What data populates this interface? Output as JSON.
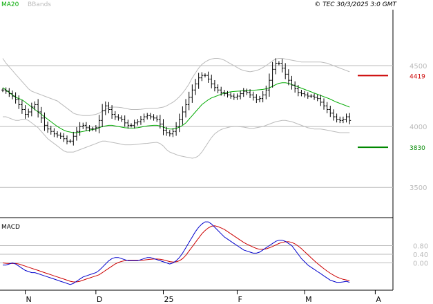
{
  "header": {
    "indicators": [
      "MA20",
      "BBands"
    ],
    "copyright": "© TEC 30/3/2025 3:0 GMT"
  },
  "colors": {
    "price_bars": "#000000",
    "ma20": "#00aa00",
    "bbands": "#bbbbbb",
    "resistance": "#cc0000",
    "support": "#008800",
    "macd_line": "#0000cc",
    "signal_line": "#cc0000",
    "grid": "#bbbbbb"
  },
  "chart_data": [
    {
      "type": "ohlc",
      "panel": "price",
      "indicators": [
        "MA20",
        "BBands"
      ],
      "y_ticks": [
        "4500",
        "4000",
        "3500"
      ],
      "y_tick_values": [
        4500,
        4000,
        3500
      ],
      "ylim": [
        3280,
        4960
      ],
      "x_ticks": [
        "N",
        "D",
        "25",
        "F",
        "M",
        "A"
      ],
      "x_tick_index": [
        7,
        29,
        50,
        73,
        94,
        116
      ],
      "n_bars": 109,
      "close": [
        4300,
        4290,
        4270,
        4250,
        4220,
        4180,
        4140,
        4100,
        4120,
        4160,
        4180,
        4120,
        4070,
        4010,
        3980,
        3960,
        3940,
        3930,
        3920,
        3900,
        3880,
        3880,
        3920,
        3960,
        4000,
        4010,
        3990,
        3980,
        3980,
        3990,
        4050,
        4130,
        4170,
        4140,
        4100,
        4080,
        4070,
        4060,
        4030,
        4010,
        4010,
        4030,
        4040,
        4060,
        4080,
        4090,
        4080,
        4070,
        4060,
        4020,
        3970,
        3950,
        3940,
        3960,
        4000,
        4060,
        4120,
        4180,
        4240,
        4300,
        4350,
        4400,
        4420,
        4420,
        4390,
        4350,
        4320,
        4300,
        4280,
        4270,
        4260,
        4250,
        4240,
        4250,
        4270,
        4290,
        4280,
        4260,
        4240,
        4220,
        4230,
        4260,
        4300,
        4380,
        4470,
        4520,
        4520,
        4480,
        4430,
        4380,
        4340,
        4310,
        4280,
        4270,
        4260,
        4250,
        4250,
        4240,
        4230,
        4200,
        4170,
        4140,
        4110,
        4080,
        4060,
        4050,
        4060,
        4080,
        4050
      ],
      "ohlc_range_note": "high/low drawn as range around close",
      "ma20": [
        4320,
        4300,
        4280,
        4260,
        4240,
        4230,
        4220,
        4200,
        4180,
        4160,
        4140,
        4120,
        4100,
        4080,
        4060,
        4040,
        4020,
        4000,
        3985,
        3970,
        3960,
        3955,
        3950,
        3950,
        3955,
        3960,
        3965,
        3970,
        3975,
        3980,
        3990,
        4000,
        4005,
        4010,
        4010,
        4005,
        4000,
        3995,
        3990,
        3988,
        3987,
        3988,
        3990,
        3995,
        4000,
        4005,
        4008,
        4010,
        4010,
        4005,
        3995,
        3985,
        3980,
        3980,
        3985,
        3995,
        4010,
        4030,
        4060,
        4090,
        4120,
        4150,
        4180,
        4200,
        4220,
        4235,
        4245,
        4255,
        4265,
        4275,
        4280,
        4285,
        4288,
        4290,
        4292,
        4295,
        4296,
        4297,
        4298,
        4300,
        4302,
        4305,
        4310,
        4318,
        4330,
        4345,
        4355,
        4360,
        4360,
        4355,
        4345,
        4335,
        4325,
        4315,
        4305,
        4295,
        4285,
        4275,
        4265,
        4255,
        4245,
        4235,
        4225,
        4212,
        4200,
        4190,
        4180,
        4170,
        4160
      ],
      "bb_upper": [
        4560,
        4520,
        4490,
        4460,
        4430,
        4400,
        4370,
        4340,
        4310,
        4290,
        4280,
        4270,
        4260,
        4250,
        4240,
        4230,
        4220,
        4210,
        4190,
        4170,
        4150,
        4130,
        4110,
        4100,
        4095,
        4090,
        4090,
        4090,
        4095,
        4100,
        4110,
        4125,
        4140,
        4155,
        4160,
        4160,
        4158,
        4155,
        4150,
        4145,
        4140,
        4140,
        4140,
        4142,
        4145,
        4148,
        4150,
        4150,
        4150,
        4155,
        4160,
        4170,
        4185,
        4200,
        4220,
        4245,
        4275,
        4310,
        4350,
        4400,
        4440,
        4480,
        4510,
        4530,
        4545,
        4555,
        4560,
        4560,
        4555,
        4545,
        4530,
        4515,
        4500,
        4485,
        4470,
        4460,
        4455,
        4450,
        4455,
        4460,
        4470,
        4485,
        4500,
        4520,
        4540,
        4555,
        4560,
        4560,
        4555,
        4550,
        4545,
        4540,
        4535,
        4530,
        4530,
        4530,
        4530,
        4530,
        4530,
        4530,
        4525,
        4520,
        4510,
        4500,
        4490,
        4480,
        4470,
        4460,
        4450
      ],
      "bb_lower": [
        4080,
        4080,
        4070,
        4060,
        4050,
        4050,
        4060,
        4060,
        4050,
        4030,
        4010,
        3990,
        3960,
        3930,
        3900,
        3880,
        3860,
        3840,
        3820,
        3800,
        3790,
        3790,
        3790,
        3800,
        3810,
        3820,
        3830,
        3840,
        3850,
        3860,
        3870,
        3880,
        3880,
        3875,
        3870,
        3865,
        3860,
        3855,
        3850,
        3850,
        3850,
        3852,
        3855,
        3858,
        3860,
        3862,
        3865,
        3868,
        3870,
        3860,
        3840,
        3810,
        3790,
        3780,
        3770,
        3760,
        3755,
        3750,
        3745,
        3740,
        3745,
        3760,
        3790,
        3830,
        3870,
        3910,
        3940,
        3960,
        3975,
        3985,
        3992,
        3998,
        4000,
        4000,
        3998,
        3995,
        3990,
        3985,
        3985,
        3990,
        3995,
        4000,
        4010,
        4020,
        4030,
        4040,
        4045,
        4050,
        4050,
        4045,
        4040,
        4030,
        4020,
        4010,
        4000,
        3990,
        3985,
        3980,
        3980,
        3980,
        3975,
        3970,
        3965,
        3960,
        3955,
        3950,
        3950,
        3950,
        3950
      ]
    },
    {
      "type": "hline",
      "panel": "price",
      "lines": [
        {
          "value": 4419,
          "label": "4419",
          "role": "resistance"
        },
        {
          "value": 3830,
          "label": "3830",
          "role": "support"
        }
      ]
    },
    {
      "type": "line",
      "panel": "macd",
      "title": "MACD",
      "y_ticks": [
        "0.80",
        "0.40",
        "0.00"
      ],
      "y_tick_values": [
        0.8,
        0.4,
        0.0
      ],
      "ylim": [
        -1.2,
        2.0
      ],
      "n_points": 109,
      "series": [
        {
          "name": "MACD",
          "values": [
            -0.1,
            -0.1,
            -0.05,
            0.0,
            -0.05,
            -0.15,
            -0.25,
            -0.35,
            -0.4,
            -0.45,
            -0.45,
            -0.5,
            -0.55,
            -0.6,
            -0.65,
            -0.7,
            -0.75,
            -0.8,
            -0.85,
            -0.9,
            -0.95,
            -1.0,
            -0.95,
            -0.85,
            -0.75,
            -0.65,
            -0.6,
            -0.55,
            -0.5,
            -0.45,
            -0.35,
            -0.2,
            -0.05,
            0.1,
            0.2,
            0.25,
            0.25,
            0.2,
            0.15,
            0.1,
            0.1,
            0.1,
            0.1,
            0.15,
            0.2,
            0.25,
            0.25,
            0.2,
            0.15,
            0.1,
            0.05,
            0.0,
            -0.05,
            0.0,
            0.1,
            0.25,
            0.45,
            0.7,
            0.95,
            1.2,
            1.45,
            1.65,
            1.8,
            1.9,
            1.9,
            1.8,
            1.65,
            1.5,
            1.35,
            1.2,
            1.1,
            1.0,
            0.9,
            0.8,
            0.7,
            0.6,
            0.55,
            0.5,
            0.45,
            0.45,
            0.5,
            0.6,
            0.7,
            0.8,
            0.9,
            1.0,
            1.05,
            1.05,
            1.0,
            0.9,
            0.8,
            0.6,
            0.4,
            0.2,
            0.05,
            -0.1,
            -0.2,
            -0.3,
            -0.4,
            -0.5,
            -0.6,
            -0.7,
            -0.8,
            -0.85,
            -0.9,
            -0.9,
            -0.88,
            -0.85,
            -0.9
          ]
        },
        {
          "name": "Signal",
          "values": [
            0.0,
            -0.02,
            -0.03,
            -0.03,
            -0.03,
            -0.05,
            -0.1,
            -0.15,
            -0.2,
            -0.25,
            -0.3,
            -0.35,
            -0.4,
            -0.45,
            -0.5,
            -0.55,
            -0.6,
            -0.65,
            -0.7,
            -0.75,
            -0.8,
            -0.85,
            -0.88,
            -0.88,
            -0.85,
            -0.8,
            -0.75,
            -0.7,
            -0.65,
            -0.6,
            -0.55,
            -0.45,
            -0.35,
            -0.25,
            -0.15,
            -0.05,
            0.02,
            0.07,
            0.1,
            0.12,
            0.12,
            0.12,
            0.12,
            0.12,
            0.13,
            0.15,
            0.17,
            0.18,
            0.18,
            0.17,
            0.14,
            0.1,
            0.06,
            0.04,
            0.05,
            0.1,
            0.2,
            0.35,
            0.55,
            0.75,
            0.95,
            1.15,
            1.35,
            1.5,
            1.62,
            1.7,
            1.72,
            1.68,
            1.62,
            1.55,
            1.45,
            1.35,
            1.25,
            1.15,
            1.05,
            0.95,
            0.87,
            0.8,
            0.73,
            0.67,
            0.63,
            0.63,
            0.65,
            0.7,
            0.76,
            0.83,
            0.9,
            0.95,
            0.98,
            0.98,
            0.95,
            0.88,
            0.78,
            0.66,
            0.52,
            0.38,
            0.24,
            0.1,
            -0.03,
            -0.15,
            -0.27,
            -0.38,
            -0.48,
            -0.57,
            -0.65,
            -0.71,
            -0.76,
            -0.79,
            -0.82
          ]
        }
      ]
    }
  ]
}
